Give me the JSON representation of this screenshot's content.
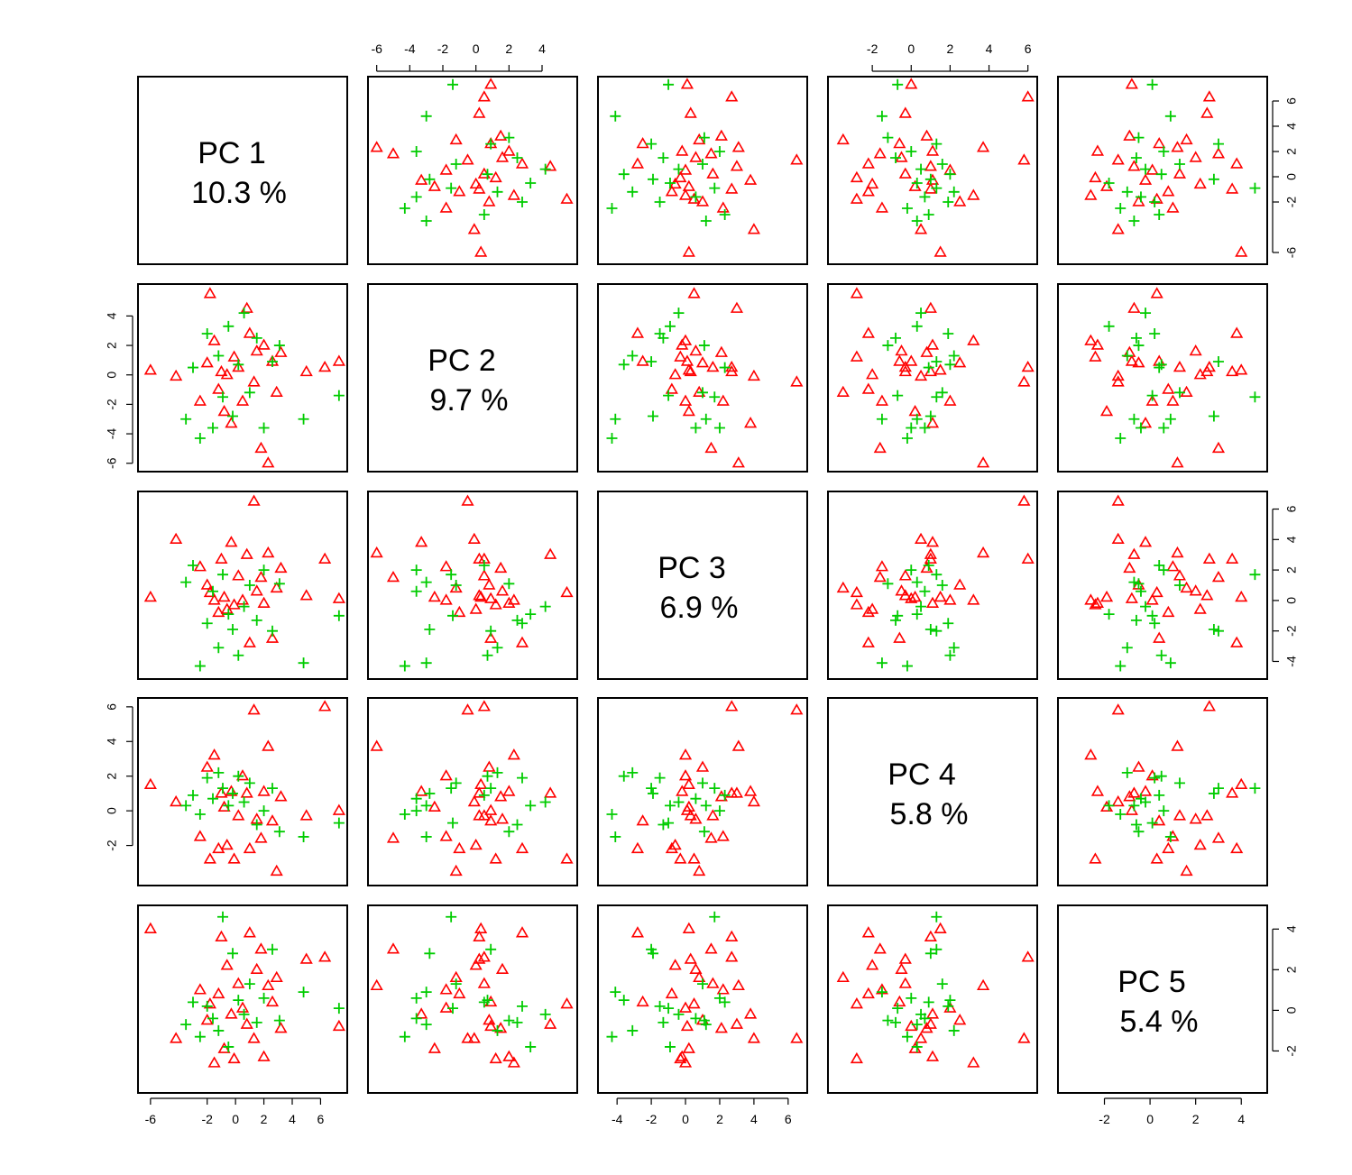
{
  "chart_data": {
    "type": "scatter",
    "matrix_variables": [
      "PC 1",
      "PC 2",
      "PC 3",
      "PC 4",
      "PC 5"
    ],
    "variance_labels": [
      "10.3 %",
      "9.7 %",
      "6.9 %",
      "5.8 %",
      "5.4 %"
    ],
    "axis_ranges": {
      "PC1": [
        -6.5,
        7.5
      ],
      "PC2": [
        -6.2,
        5.8
      ],
      "PC3": [
        -4.8,
        6.8
      ],
      "PC4": [
        -4.0,
        6.2
      ],
      "PC5": [
        -3.8,
        4.9
      ]
    },
    "ticks": {
      "PC1": [
        -6,
        -2,
        0,
        2,
        4,
        6
      ],
      "PC2": [
        -6,
        -4,
        -2,
        0,
        2,
        4
      ],
      "PC3": [
        -4,
        -2,
        0,
        2,
        4,
        6
      ],
      "PC4": [
        -2,
        0,
        2,
        4,
        6
      ],
      "PC5": [
        -2,
        0,
        2,
        4
      ]
    },
    "series": [
      {
        "marker": "triangle",
        "color": "#ff0000",
        "points": [
          [
            -6.0,
            0.3,
            0.2,
            1.5,
            4.0
          ],
          [
            -4.2,
            -0.1,
            4.0,
            0.5,
            -1.4
          ],
          [
            -2.5,
            -1.8,
            2.2,
            -1.5,
            1.0
          ],
          [
            -2.0,
            0.8,
            1.0,
            2.5,
            -0.5
          ],
          [
            -1.8,
            5.5,
            0.5,
            -2.8,
            0.3
          ],
          [
            -1.5,
            2.3,
            0.0,
            3.2,
            -2.6
          ],
          [
            -1.2,
            -1.0,
            -0.8,
            -2.2,
            0.8
          ],
          [
            -1.0,
            0.2,
            2.7,
            1.0,
            3.6
          ],
          [
            -0.8,
            -2.5,
            0.2,
            0.2,
            -1.9
          ],
          [
            -0.6,
            0.0,
            -0.6,
            -2.0,
            2.2
          ],
          [
            -0.3,
            -3.3,
            3.8,
            1.1,
            -0.2
          ],
          [
            -0.1,
            1.2,
            -0.3,
            -2.8,
            -2.4
          ],
          [
            0.2,
            0.5,
            1.6,
            -0.3,
            1.3
          ],
          [
            0.5,
            -1.8,
            0.0,
            2.0,
            0.1
          ],
          [
            0.8,
            4.5,
            3.0,
            1.0,
            -0.7
          ],
          [
            1.0,
            2.8,
            -2.8,
            -2.2,
            3.8
          ],
          [
            1.3,
            -0.5,
            6.5,
            5.8,
            -1.4
          ],
          [
            1.5,
            1.6,
            0.6,
            -0.5,
            2.0
          ],
          [
            1.8,
            -5.0,
            1.5,
            -1.6,
            3.0
          ],
          [
            2.0,
            2.0,
            -0.2,
            1.1,
            -2.3
          ],
          [
            2.3,
            -6.0,
            3.1,
            3.7,
            1.2
          ],
          [
            2.6,
            0.9,
            -2.5,
            -0.6,
            0.4
          ],
          [
            2.9,
            -1.2,
            0.8,
            -3.5,
            1.6
          ],
          [
            3.2,
            1.5,
            2.1,
            0.8,
            -0.9
          ],
          [
            5.0,
            0.2,
            0.3,
            -0.3,
            2.5
          ],
          [
            6.3,
            0.5,
            2.7,
            6.0,
            2.6
          ],
          [
            7.3,
            0.9,
            0.1,
            0.0,
            -0.8
          ]
        ]
      },
      {
        "marker": "plus",
        "color": "#00cc00",
        "points": [
          [
            -3.5,
            -3.0,
            1.2,
            0.3,
            -0.7
          ],
          [
            -3.0,
            0.5,
            2.3,
            0.9,
            0.4
          ],
          [
            -2.5,
            -4.3,
            -4.3,
            -0.2,
            -1.3
          ],
          [
            -2.0,
            2.8,
            -1.5,
            1.9,
            0.2
          ],
          [
            -1.6,
            -3.6,
            0.6,
            0.7,
            -0.4
          ],
          [
            -1.2,
            1.3,
            -3.1,
            2.2,
            -1.0
          ],
          [
            -0.9,
            -1.5,
            1.7,
            1.3,
            4.6
          ],
          [
            -0.5,
            3.3,
            -0.9,
            0.3,
            -1.8
          ],
          [
            -0.2,
            -2.8,
            -1.9,
            1.0,
            2.8
          ],
          [
            0.2,
            0.7,
            -3.6,
            2.0,
            0.5
          ],
          [
            0.6,
            4.2,
            -0.4,
            0.5,
            -0.2
          ],
          [
            1.0,
            -1.2,
            1.0,
            1.6,
            1.3
          ],
          [
            1.5,
            2.5,
            -1.3,
            -0.8,
            -0.6
          ],
          [
            2.0,
            -3.6,
            2.0,
            0.0,
            0.6
          ],
          [
            2.6,
            0.9,
            -2.0,
            1.3,
            3.0
          ],
          [
            3.1,
            2.0,
            1.1,
            -1.2,
            -0.5
          ],
          [
            4.8,
            -3.0,
            -4.1,
            -1.5,
            0.9
          ],
          [
            7.3,
            -1.4,
            -1.0,
            -0.7,
            0.1
          ]
        ]
      }
    ]
  }
}
